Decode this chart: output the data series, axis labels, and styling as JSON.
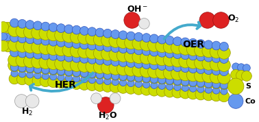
{
  "background_color": "#ffffff",
  "sheet": {
    "co_color": "#6699ee",
    "s_color": "#ccdd00",
    "co_color_dark": "#3355bb",
    "s_color_dark": "#999900"
  },
  "legend": [
    {
      "color": "#6699ee",
      "ec": "#3355bb",
      "label": "Co",
      "fontsize": 8
    },
    {
      "color": "#ccdd00",
      "ec": "#999900",
      "label": "S",
      "fontsize": 8
    }
  ],
  "her_arrow": {
    "color": "#44aacc",
    "label": "HER",
    "fontsize": 10
  },
  "oer_arrow": {
    "color": "#44aacc",
    "label": "OER",
    "fontsize": 10
  },
  "mol_colors": {
    "white": "#e8e8e8",
    "white_ec": "#999999",
    "red": "#dd2222",
    "red_ec": "#991111"
  }
}
